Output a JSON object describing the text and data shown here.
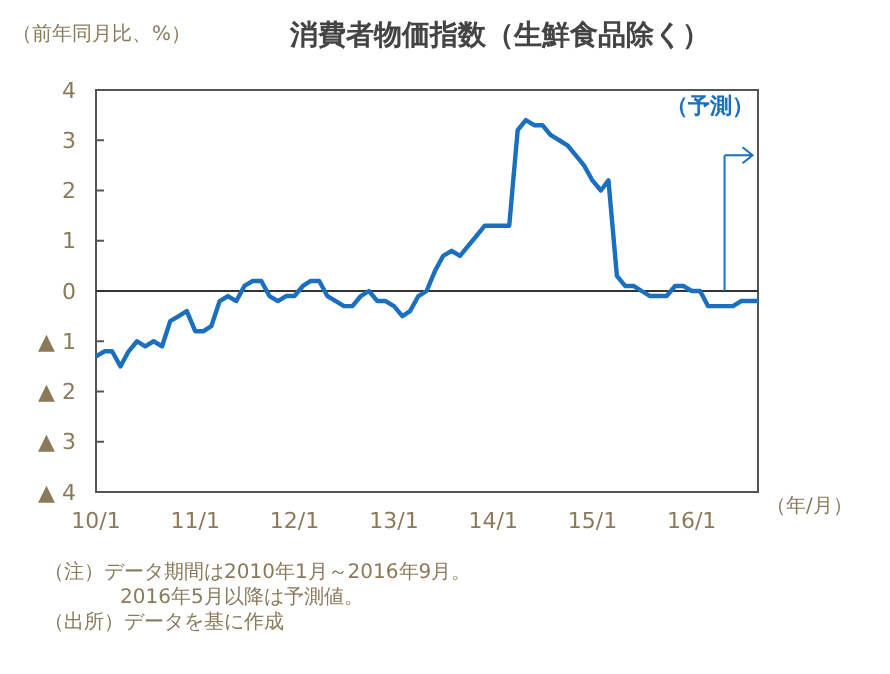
{
  "chart_data": {
    "type": "line",
    "title": "消費者物価指数（生鮮食品除く）",
    "ylabel": "（前年同月比、%）",
    "xlabel": "（年/月）",
    "x": [
      "2010-01",
      "2010-02",
      "2010-03",
      "2010-04",
      "2010-05",
      "2010-06",
      "2010-07",
      "2010-08",
      "2010-09",
      "2010-10",
      "2010-11",
      "2010-12",
      "2011-01",
      "2011-02",
      "2011-03",
      "2011-04",
      "2011-05",
      "2011-06",
      "2011-07",
      "2011-08",
      "2011-09",
      "2011-10",
      "2011-11",
      "2011-12",
      "2012-01",
      "2012-02",
      "2012-03",
      "2012-04",
      "2012-05",
      "2012-06",
      "2012-07",
      "2012-08",
      "2012-09",
      "2012-10",
      "2012-11",
      "2012-12",
      "2013-01",
      "2013-02",
      "2013-03",
      "2013-04",
      "2013-05",
      "2013-06",
      "2013-07",
      "2013-08",
      "2013-09",
      "2013-10",
      "2013-11",
      "2013-12",
      "2014-01",
      "2014-02",
      "2014-03",
      "2014-04",
      "2014-05",
      "2014-06",
      "2014-07",
      "2014-08",
      "2014-09",
      "2014-10",
      "2014-11",
      "2014-12",
      "2015-01",
      "2015-02",
      "2015-03",
      "2015-04",
      "2015-05",
      "2015-06",
      "2015-07",
      "2015-08",
      "2015-09",
      "2015-10",
      "2015-11",
      "2015-12",
      "2016-01",
      "2016-02",
      "2016-03",
      "2016-04",
      "2016-05",
      "2016-06",
      "2016-07",
      "2016-08",
      "2016-09"
    ],
    "series": [
      {
        "color": "#1a6fbf",
        "values": [
          -1.3,
          -1.2,
          -1.2,
          -1.5,
          -1.2,
          -1.0,
          -1.1,
          -1.0,
          -1.1,
          -0.6,
          -0.5,
          -0.4,
          -0.8,
          -0.8,
          -0.7,
          -0.2,
          -0.1,
          -0.2,
          0.1,
          0.2,
          0.2,
          -0.1,
          -0.2,
          -0.1,
          -0.1,
          0.1,
          0.2,
          0.2,
          -0.1,
          -0.2,
          -0.3,
          -0.3,
          -0.1,
          0.0,
          -0.2,
          -0.2,
          -0.3,
          -0.5,
          -0.4,
          -0.1,
          0.0,
          0.4,
          0.7,
          0.8,
          0.7,
          0.9,
          1.1,
          1.3,
          1.3,
          1.3,
          1.3,
          3.2,
          3.4,
          3.3,
          3.3,
          3.1,
          3.0,
          2.9,
          2.7,
          2.5,
          2.2,
          2.0,
          2.2,
          0.3,
          0.1,
          0.1,
          0.0,
          -0.1,
          -0.1,
          -0.1,
          0.1,
          0.1,
          0.0,
          0.0,
          -0.3,
          -0.3,
          -0.3,
          -0.3,
          -0.2,
          -0.2,
          -0.2
        ]
      }
    ],
    "xlim": [
      "2010-01",
      "2016-09"
    ],
    "xticks": [
      {
        "value": "2010-01",
        "label": "10/1"
      },
      {
        "value": "2011-01",
        "label": "11/1"
      },
      {
        "value": "2012-01",
        "label": "12/1"
      },
      {
        "value": "2013-01",
        "label": "13/1"
      },
      {
        "value": "2014-01",
        "label": "14/1"
      },
      {
        "value": "2015-01",
        "label": "15/1"
      },
      {
        "value": "2016-01",
        "label": "16/1"
      }
    ],
    "ylim": [
      -4,
      4
    ],
    "yticks": [
      {
        "value": -4,
        "label": "▲ 4"
      },
      {
        "value": -3,
        "label": "▲ 3"
      },
      {
        "value": -2,
        "label": "▲ 2"
      },
      {
        "value": -1,
        "label": "▲ 1"
      },
      0,
      1,
      2,
      3,
      4
    ],
    "ref_lines": [
      {
        "axis": "y",
        "value": 0,
        "color": "#333333"
      },
      {
        "axis": "x",
        "value": "2016-05",
        "label": "（予測）",
        "color": "#1a6fbf"
      }
    ],
    "grid": false,
    "marker": "none",
    "line_style": "solid",
    "annotations": [
      "（注）データ期間は2010年1月～2016年9月。",
      "2016年5月以降は予測値。",
      "（出所）データを基に作成"
    ]
  }
}
